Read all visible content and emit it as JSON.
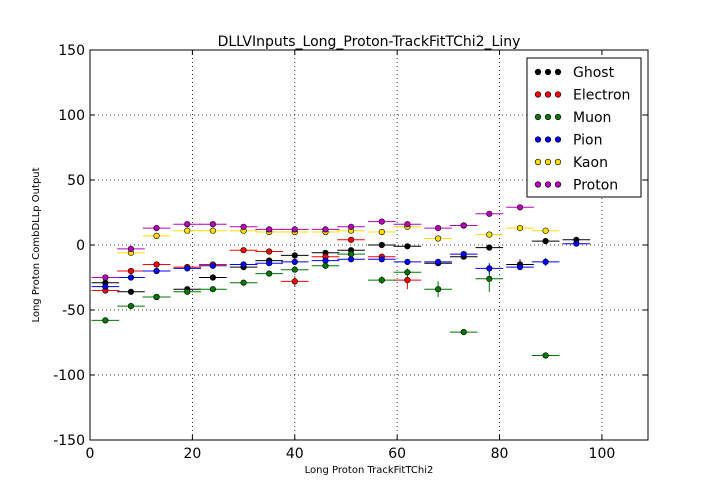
{
  "chart_data": {
    "type": "scatter",
    "title": "DLLVInputs_Long_Proton-TrackFitTChi2_Liny",
    "xlabel": "Long Proton TrackFitTChi2",
    "ylabel": "Long Proton CombDLLp Output",
    "xlim": [
      0,
      109
    ],
    "ylim": [
      -150,
      150
    ],
    "xticks": [
      0,
      20,
      40,
      60,
      80,
      100
    ],
    "yticks": [
      -150,
      -100,
      -50,
      0,
      50,
      100,
      150
    ],
    "grid": true,
    "legend_position": "top-right",
    "bin_half_width": 2.7,
    "series": [
      {
        "name": "Ghost",
        "color": "#000000",
        "x": [
          3,
          8,
          13,
          19,
          24,
          30,
          35,
          40,
          46,
          51,
          57,
          62,
          68,
          73,
          78,
          84,
          89,
          95
        ],
        "y": [
          -29,
          -36,
          -40,
          -34,
          -25,
          -17,
          -12,
          -8,
          -6,
          -4,
          0,
          -1,
          -14,
          -9,
          -2,
          -15,
          3,
          4
        ],
        "err": [
          0,
          0,
          0,
          0,
          0,
          0,
          0,
          0,
          0,
          0,
          0,
          0,
          0,
          0,
          0,
          4,
          0,
          0
        ]
      },
      {
        "name": "Electron",
        "color": "#ff0000",
        "x": [
          3,
          8,
          13,
          19,
          24,
          30,
          35,
          40,
          46,
          51,
          57,
          62
        ],
        "y": [
          -35,
          -20,
          -15,
          -17,
          -15,
          -4,
          -5,
          -28,
          -9,
          4,
          -9,
          -27
        ],
        "err": [
          0,
          0,
          0,
          0,
          0,
          0,
          0,
          4,
          0,
          0,
          0,
          7
        ]
      },
      {
        "name": "Muon",
        "color": "#007700",
        "x": [
          3,
          8,
          13,
          19,
          24,
          30,
          35,
          40,
          46,
          51,
          57,
          62,
          68,
          73,
          78,
          89
        ],
        "y": [
          -58,
          -47,
          -40,
          -36,
          -34,
          -29,
          -22,
          -19,
          -16,
          -7,
          -27,
          -21,
          -34,
          -67,
          -26,
          -85
        ],
        "err": [
          0,
          0,
          0,
          0,
          0,
          0,
          0,
          0,
          0,
          0,
          3,
          3,
          6,
          0,
          10,
          0
        ]
      },
      {
        "name": "Pion",
        "color": "#0000ff",
        "x": [
          3,
          8,
          13,
          19,
          24,
          30,
          35,
          40,
          46,
          51,
          57,
          62,
          68,
          73,
          78,
          84,
          89,
          95
        ],
        "y": [
          -32,
          -25,
          -20,
          -18,
          -16,
          -15,
          -14,
          -13,
          -12,
          -11,
          -11,
          -13,
          -13,
          -7,
          -18,
          -17,
          -13,
          1
        ],
        "err": [
          0,
          0,
          0,
          0,
          0,
          0,
          0,
          0,
          0,
          0,
          0,
          0,
          0,
          0,
          4,
          2,
          3,
          0
        ]
      },
      {
        "name": "Kaon",
        "color": "#ffdd00",
        "x": [
          8,
          13,
          19,
          24,
          30,
          35,
          40,
          46,
          51,
          57,
          62,
          68,
          73,
          78,
          84,
          89
        ],
        "y": [
          -6,
          7,
          11,
          11,
          11,
          10,
          10,
          10,
          11,
          10,
          14,
          5,
          15,
          8,
          13,
          11
        ],
        "err": [
          0,
          0,
          0,
          0,
          0,
          0,
          0,
          0,
          0,
          0,
          0,
          0,
          0,
          0,
          0,
          0
        ]
      },
      {
        "name": "Proton",
        "color": "#bb00bb",
        "x": [
          3,
          8,
          13,
          19,
          24,
          30,
          35,
          40,
          46,
          51,
          57,
          62,
          68,
          73,
          78,
          84
        ],
        "y": [
          -25,
          -3,
          13,
          16,
          16,
          14,
          12,
          12,
          12,
          14,
          18,
          16,
          13,
          15,
          24,
          29
        ],
        "err": [
          0,
          0,
          0,
          0,
          0,
          0,
          0,
          0,
          0,
          0,
          0,
          0,
          0,
          0,
          0,
          0
        ]
      }
    ]
  }
}
